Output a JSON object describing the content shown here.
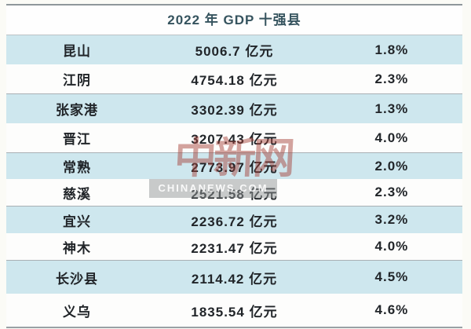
{
  "header": {
    "title": "2022 年 GDP 十强县"
  },
  "table": {
    "rows": [
      {
        "county": "昆山",
        "gdp": "5006.7 亿元",
        "growth": "1.8%"
      },
      {
        "county": "江阴",
        "gdp": "4754.18 亿元",
        "growth": "2.3%"
      },
      {
        "county": "张家港",
        "gdp": "3302.39 亿元",
        "growth": "1.3%"
      },
      {
        "county": "晋江",
        "gdp": "3207.43 亿元",
        "growth": "4.0%"
      },
      {
        "county": "常熟",
        "gdp": "2773.97 亿元",
        "growth": "2.0%"
      },
      {
        "county": "慈溪",
        "gdp": "2521.58 亿元",
        "growth": "2.3%"
      },
      {
        "county": "宜兴",
        "gdp": "2236.72 亿元",
        "growth": "3.2%"
      },
      {
        "county": "神木",
        "gdp": "2231.47 亿元",
        "growth": "4.0%"
      },
      {
        "county": "长沙县",
        "gdp": "2114.42 亿元",
        "growth": "4.5%"
      },
      {
        "county": "义乌",
        "gdp": "1835.54 亿元",
        "growth": "4.6%"
      }
    ]
  },
  "watermark": {
    "logo": "中新网",
    "site": "CHINANEWS.COM"
  },
  "colors": {
    "row_shaded_bg": "#cee7ee",
    "header_text": "#35535e",
    "body_text": "#212529",
    "rule_gray": "#9aa1a5",
    "watermark_red": "#a6403880",
    "watermark_band": "#94989880"
  },
  "chart_data": {
    "type": "table",
    "title": "2022 年 GDP 十强县",
    "counties": [
      "昆山",
      "江阴",
      "张家港",
      "晋江",
      "常熟",
      "慈溪",
      "宜兴",
      "神木",
      "长沙县",
      "义乌"
    ],
    "gdp_yi_yuan": [
      5006.7,
      4754.18,
      3302.39,
      3207.43,
      2773.97,
      2521.58,
      2236.72,
      2231.47,
      2114.42,
      1835.54
    ],
    "gdp_unit": "亿元",
    "growth_pct": [
      1.8,
      2.3,
      1.3,
      4.0,
      2.0,
      2.3,
      3.2,
      4.0,
      4.5,
      4.6
    ]
  }
}
